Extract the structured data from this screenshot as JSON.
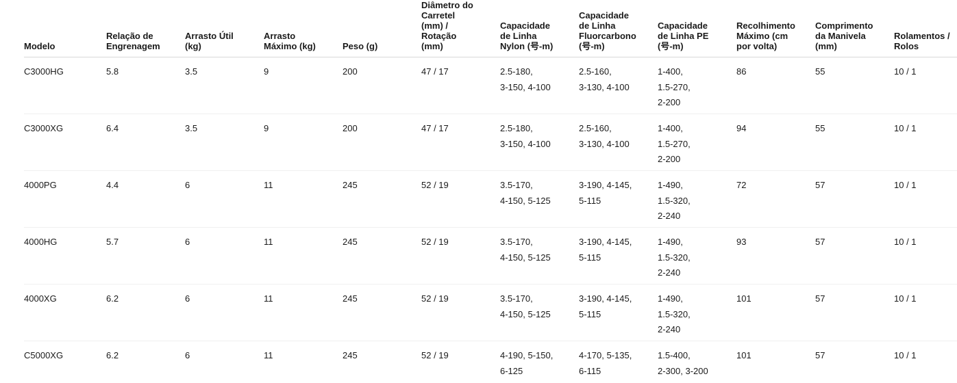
{
  "table": {
    "columns": [
      {
        "label": "Modelo"
      },
      {
        "label": "Relação de\nEngrenagem"
      },
      {
        "label": "Arrasto Útil\n(kg)"
      },
      {
        "label": "Arrasto\nMáximo (kg)"
      },
      {
        "label": "Peso (g)"
      },
      {
        "label": "Diâmetro do\nCarretel\n(mm) /\nRotação\n(mm)"
      },
      {
        "label": "Capacidade\nde Linha\nNylon (号-m)"
      },
      {
        "label": "Capacidade\nde Linha\nFluorcarbono\n(号-m)"
      },
      {
        "label": "Capacidade\nde Linha PE\n(号-m)"
      },
      {
        "label": "Recolhimento\nMáximo (cm\npor volta)"
      },
      {
        "label": "Comprimento\nda Manivela\n(mm)"
      },
      {
        "label": "Rolamentos /\nRolos"
      }
    ],
    "rows": [
      {
        "cells": [
          "C3000HG",
          "5.8",
          "3.5",
          "9",
          "200",
          "47 / 17",
          "2.5-180,\n3-150, 4-100",
          "2.5-160,\n3-130, 4-100",
          "1-400,\n1.5-270,\n2-200",
          "86",
          "55",
          "10 / 1"
        ]
      },
      {
        "cells": [
          "C3000XG",
          "6.4",
          "3.5",
          "9",
          "200",
          "47 / 17",
          "2.5-180,\n3-150, 4-100",
          "2.5-160,\n3-130, 4-100",
          "1-400,\n1.5-270,\n2-200",
          "94",
          "55",
          "10 / 1"
        ]
      },
      {
        "cells": [
          "4000PG",
          "4.4",
          "6",
          "11",
          "245",
          "52 / 19",
          "3.5-170,\n4-150, 5-125",
          "3-190, 4-145,\n5-115",
          "1-490,\n1.5-320,\n2-240",
          "72",
          "57",
          "10 / 1"
        ]
      },
      {
        "cells": [
          "4000HG",
          "5.7",
          "6",
          "11",
          "245",
          "52 / 19",
          "3.5-170,\n4-150, 5-125",
          "3-190, 4-145,\n5-115",
          "1-490,\n1.5-320,\n2-240",
          "93",
          "57",
          "10 / 1"
        ]
      },
      {
        "cells": [
          "4000XG",
          "6.2",
          "6",
          "11",
          "245",
          "52 / 19",
          "3.5-170,\n4-150, 5-125",
          "3-190, 4-145,\n5-115",
          "1-490,\n1.5-320,\n2-240",
          "101",
          "57",
          "10 / 1"
        ]
      },
      {
        "cells": [
          "C5000XG",
          "6.2",
          "6",
          "11",
          "245",
          "52 / 19",
          "4-190, 5-150,\n6-125",
          "4-170, 5-135,\n6-115",
          "1.5-400,\n2-300, 3-200",
          "101",
          "57",
          "10 / 1"
        ]
      }
    ]
  }
}
